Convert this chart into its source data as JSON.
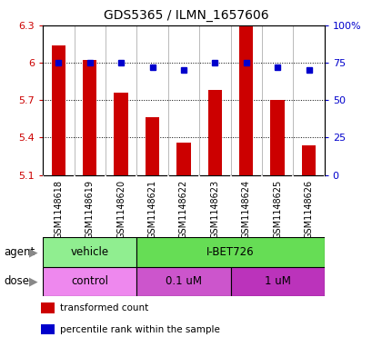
{
  "title": "GDS5365 / ILMN_1657606",
  "samples": [
    "GSM1148618",
    "GSM1148619",
    "GSM1148620",
    "GSM1148621",
    "GSM1148622",
    "GSM1148623",
    "GSM1148624",
    "GSM1148625",
    "GSM1148626"
  ],
  "red_values": [
    6.14,
    6.02,
    5.76,
    5.56,
    5.36,
    5.78,
    6.29,
    5.7,
    5.34
  ],
  "blue_values": [
    75,
    75,
    75,
    72,
    70,
    75,
    75,
    72,
    70
  ],
  "ylim_left": [
    5.1,
    6.3
  ],
  "ylim_right": [
    0,
    100
  ],
  "yticks_left": [
    5.1,
    5.4,
    5.7,
    6.0,
    6.3
  ],
  "yticks_right": [
    0,
    25,
    50,
    75,
    100
  ],
  "ytick_labels_left": [
    "5.1",
    "5.4",
    "5.7",
    "6",
    "6.3"
  ],
  "ytick_labels_right": [
    "0",
    "25",
    "50",
    "75",
    "100%"
  ],
  "agent_groups": [
    {
      "label": "vehicle",
      "start": 0,
      "end": 3,
      "color": "#90ee90"
    },
    {
      "label": "I-BET726",
      "start": 3,
      "end": 9,
      "color": "#66dd55"
    }
  ],
  "dose_groups": [
    {
      "label": "control",
      "start": 0,
      "end": 3,
      "color": "#ee88ee"
    },
    {
      "label": "0.1 uM",
      "start": 3,
      "end": 6,
      "color": "#cc55cc"
    },
    {
      "label": "1 uM",
      "start": 6,
      "end": 9,
      "color": "#bb33bb"
    }
  ],
  "legend_items": [
    {
      "color": "#cc0000",
      "label": "transformed count"
    },
    {
      "color": "#0000cc",
      "label": "percentile rank within the sample"
    }
  ],
  "bar_color": "#cc0000",
  "dot_color": "#0000cc",
  "bar_bottom": 5.1,
  "sample_bg": "#cccccc",
  "plot_bg": "#ffffff",
  "title_color": "#000000",
  "left_tick_color": "#cc0000",
  "right_tick_color": "#0000cc",
  "grid_color": "#000000",
  "agent_label_color": "#000000",
  "dose_label_color": "#000000"
}
